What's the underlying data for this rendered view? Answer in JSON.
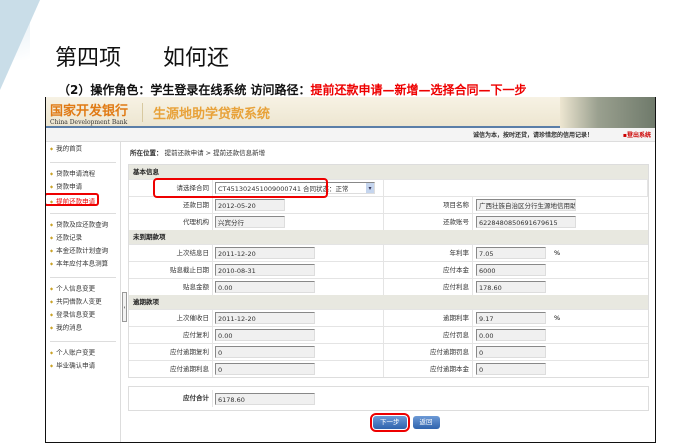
{
  "slide": {
    "title": "第四项      如何还",
    "subtitle_prefix": "（2）操作角色：学生登录在线系统  访问路径：",
    "subtitle_path": "提前还款申请—新增—选择合同—下一步"
  },
  "app": {
    "bank_name": "国家开发银行",
    "bank_name_en": "China Development Bank",
    "system_name": "生源地助学贷款系统",
    "slogan": "诚信为本，按时还贷，请珍惜您的信用记录！",
    "logout": "▪登出系统"
  },
  "sidebar": {
    "groups": [
      [
        "我的首页"
      ],
      [
        "贷款申请流程",
        "贷款申请",
        "提前还款申请"
      ],
      [
        "贷款及应还款查询",
        "还款记录",
        "本金还款计划查询",
        "本年应付本息测算"
      ],
      [
        "个人信息变更",
        "共同借款人变更",
        "登录信息变更",
        "我的消息"
      ],
      [
        "个人账户变更",
        "毕业确认申请"
      ]
    ],
    "active": "提前还款申请"
  },
  "breadcrumb": {
    "label": "所在位置：",
    "path": "提前还款申请 > 提前还款信息新增"
  },
  "sections": [
    {
      "title": "基本信息",
      "rows": [
        {
          "l": "请选择合同",
          "v": "CT451302451009000741  合同状态：正常",
          "select": true
        },
        {
          "l": "还款日期",
          "v": "2012-05-20",
          "l2": "项目名称",
          "v2": "广西壮族自治区分行生源地信用助学"
        },
        {
          "l": "代理机构",
          "v": "兴宾分行",
          "l2": "还款账号",
          "v2": "6228480850691679615"
        }
      ]
    },
    {
      "title": "未到期款项",
      "rows": [
        {
          "l": "上次结息日",
          "v": "2011-12-20",
          "l2": "年利率",
          "v2": "7.05",
          "u": "%"
        },
        {
          "l": "贴息截止日期",
          "v": "2010-08-31",
          "l2": "应付本金",
          "v2": "6000"
        },
        {
          "l": "贴息金额",
          "v": "0.00",
          "l2": "应付利息",
          "v2": "178.60"
        }
      ]
    },
    {
      "title": "逾期款项",
      "rows": [
        {
          "l": "上次催收日",
          "v": "2011-12-20",
          "l2": "逾期利率",
          "v2": "9.17",
          "u": "%"
        },
        {
          "l": "应付复利",
          "v": "0.00",
          "l2": "应付罚息",
          "v2": "0.00"
        },
        {
          "l": "应付逾期复利",
          "v": "0",
          "l2": "应付逾期罚息",
          "v2": "0"
        },
        {
          "l": "应付逾期利息",
          "v": "0",
          "l2": "应付逾期本金",
          "v2": "0"
        }
      ]
    }
  ],
  "total": {
    "label": "应付合计",
    "value": "6178.60"
  },
  "buttons": {
    "next": "下一步",
    "back": "返回"
  }
}
